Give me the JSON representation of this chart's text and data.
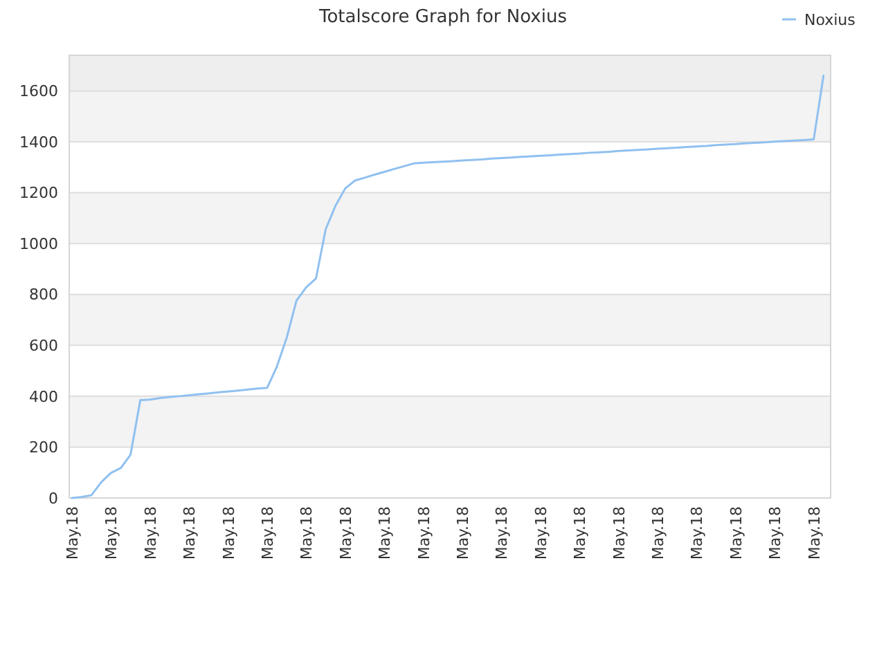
{
  "chart_data": {
    "type": "line",
    "title": "Totalscore Graph for Noxius",
    "categories": [
      "May.18",
      null,
      null,
      null,
      "May.18",
      null,
      null,
      null,
      "May.18",
      null,
      null,
      null,
      "May.18",
      null,
      null,
      null,
      "May.18",
      null,
      null,
      null,
      "May.18",
      null,
      null,
      null,
      "May.18",
      null,
      null,
      null,
      "May.18",
      null,
      null,
      null,
      "May.18",
      null,
      null,
      null,
      "May.18",
      null,
      null,
      null,
      "May.18",
      null,
      null,
      null,
      "May.18",
      null,
      null,
      null,
      "May.18",
      null,
      null,
      null,
      "May.18",
      null,
      null,
      null,
      "May.18",
      null,
      null,
      null,
      "May.18",
      null,
      null,
      null,
      "May.18",
      null,
      null,
      null,
      "May.18",
      null,
      null,
      null,
      "May.18",
      null,
      null,
      null,
      "May.18",
      null
    ],
    "ylim": [
      0,
      1740
    ],
    "yticks": [
      0,
      200,
      400,
      600,
      800,
      1000,
      1200,
      1400,
      1600
    ],
    "grid": "y",
    "legend": "top right",
    "bands": [
      {
        "axis": "y",
        "from": 200,
        "to": 400,
        "color": "#f3f3f3"
      },
      {
        "axis": "y",
        "from": 600,
        "to": 800,
        "color": "#f3f3f3"
      },
      {
        "axis": "y",
        "from": 1000,
        "to": 1200,
        "color": "#f3f3f3"
      },
      {
        "axis": "y",
        "from": 1400,
        "to": 1600,
        "color": "#f3f3f3"
      },
      {
        "axis": "y",
        "from": 1600,
        "to": 1740,
        "color": "#eeeeee"
      }
    ],
    "series": [
      {
        "name": "Noxius",
        "color": "#90c0f0",
        "values": [
          0,
          4,
          11,
          62,
          99,
          118,
          170,
          385,
          387,
          393,
          397,
          400,
          404,
          408,
          411,
          415,
          419,
          422,
          426,
          430,
          433,
          517,
          630,
          776,
          828,
          863,
          1057,
          1149,
          1217,
          1248,
          1259,
          1271,
          1282,
          1293,
          1304,
          1315,
          1318,
          1320,
          1322,
          1324,
          1327,
          1329,
          1331,
          1334,
          1336,
          1338,
          1341,
          1343,
          1345,
          1347,
          1350,
          1352,
          1354,
          1357,
          1359,
          1361,
          1364,
          1366,
          1368,
          1370,
          1373,
          1375,
          1377,
          1380,
          1382,
          1384,
          1387,
          1389,
          1391,
          1394,
          1396,
          1398,
          1401,
          1403,
          1405,
          1407,
          1410,
          1660
        ]
      }
    ]
  }
}
